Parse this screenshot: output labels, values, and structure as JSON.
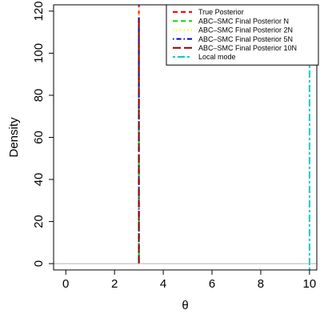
{
  "chart_data": {
    "type": "line",
    "xlabel": "θ",
    "ylabel": "Density",
    "xlim": [
      -0.5,
      10.3
    ],
    "ylim": [
      -3,
      123
    ],
    "x_ticks": [
      0,
      2,
      4,
      6,
      8,
      10
    ],
    "x_tick_labels": [
      "0",
      "2",
      "4",
      "6",
      "8",
      "10"
    ],
    "y_ticks": [
      0,
      20,
      40,
      60,
      80,
      100,
      120
    ],
    "y_tick_labels": [
      "0",
      "20",
      "40",
      "60",
      "80",
      "100",
      "120"
    ],
    "baseline_y": 0,
    "grid": false,
    "legend_position": "top-right",
    "series": [
      {
        "name": "True Posterior",
        "color": "#ff0000",
        "dash": "dashed",
        "x": [
          3,
          3
        ],
        "y": [
          0,
          123
        ]
      },
      {
        "name": "ABC–SMC Final Posterior N",
        "color": "#00dd00",
        "dash": "dashed",
        "x": [
          3,
          3
        ],
        "y": [
          0,
          115
        ]
      },
      {
        "name": "ABC–SMC Final Posterior 2N",
        "color": "#ffff00",
        "dash": "dotted",
        "x": [
          3,
          3
        ],
        "y": [
          0,
          120
        ]
      },
      {
        "name": "ABC–SMC Final Posterior 5N",
        "color": "#0000cd",
        "dash": "dotdash",
        "x": [
          3,
          3
        ],
        "y": [
          0,
          118
        ]
      },
      {
        "name": "ABC–SMC Final Posterior 10N",
        "color": "#8b0000",
        "dash": "longdash",
        "x": [
          3,
          3
        ],
        "y": [
          0,
          116
        ]
      },
      {
        "name": "Local mode",
        "color": "#00cccc",
        "dash": "twodash",
        "x": [
          10,
          10
        ],
        "y": [
          -3,
          123
        ]
      }
    ]
  }
}
